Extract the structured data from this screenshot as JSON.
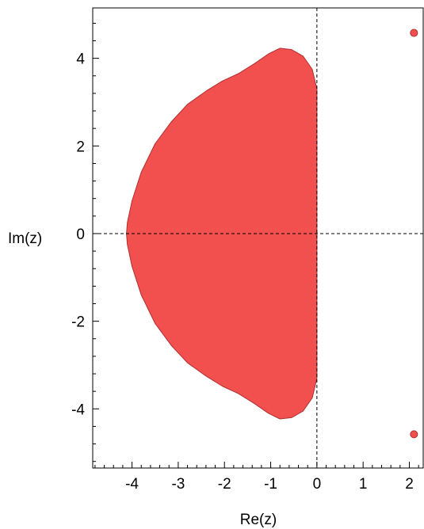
{
  "chart_data": {
    "type": "area",
    "title": "",
    "xlabel": "Re(z)",
    "ylabel": "Im(z)",
    "xlim": [
      -4.85,
      2.3
    ],
    "ylim": [
      -5.35,
      5.15
    ],
    "xticks": [
      -4,
      -3,
      -2,
      -1,
      0,
      1,
      2
    ],
    "yticks": [
      -4,
      -2,
      0,
      2,
      4
    ],
    "x_minor_step": 0.2,
    "y_minor_step": 0.4,
    "grid": false,
    "dashed_axes_through_origin": true,
    "fill_color": "#f24f4f",
    "stroke_color": "#b03030",
    "region_boundary": [
      [
        0,
        3.3
      ],
      [
        -0.1,
        3.75
      ],
      [
        -0.3,
        4.05
      ],
      [
        -0.55,
        4.2
      ],
      [
        -0.8,
        4.23
      ],
      [
        -1.05,
        4.1
      ],
      [
        -1.35,
        3.88
      ],
      [
        -1.7,
        3.65
      ],
      [
        -2.05,
        3.48
      ],
      [
        -2.4,
        3.25
      ],
      [
        -2.8,
        2.95
      ],
      [
        -3.15,
        2.55
      ],
      [
        -3.5,
        2.05
      ],
      [
        -3.8,
        1.4
      ],
      [
        -4.0,
        0.75
      ],
      [
        -4.1,
        0.25
      ],
      [
        -4.12,
        0
      ],
      [
        -4.1,
        -0.25
      ],
      [
        -4.0,
        -0.75
      ],
      [
        -3.8,
        -1.4
      ],
      [
        -3.5,
        -2.05
      ],
      [
        -3.15,
        -2.55
      ],
      [
        -2.8,
        -2.95
      ],
      [
        -2.4,
        -3.25
      ],
      [
        -2.05,
        -3.48
      ],
      [
        -1.7,
        -3.65
      ],
      [
        -1.35,
        -3.88
      ],
      [
        -1.05,
        -4.1
      ],
      [
        -0.8,
        -4.23
      ],
      [
        -0.55,
        -4.2
      ],
      [
        -0.3,
        -4.05
      ],
      [
        -0.1,
        -3.75
      ],
      [
        0,
        -3.3
      ]
    ],
    "points": [
      {
        "x": 2.1,
        "y": 4.58
      },
      {
        "x": 2.1,
        "y": -4.58
      }
    ]
  }
}
